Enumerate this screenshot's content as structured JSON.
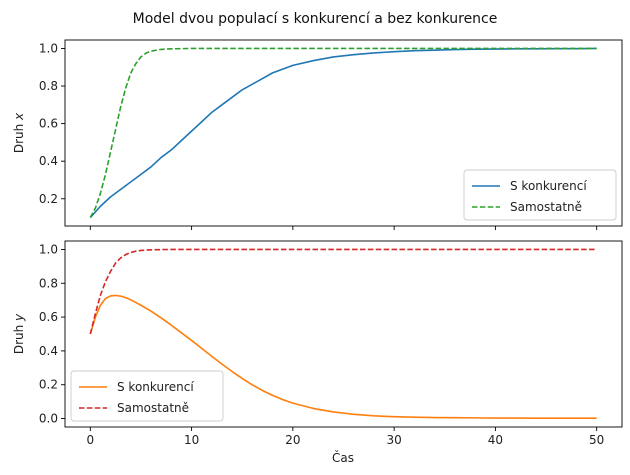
{
  "figure": {
    "title": "Model dvou populací s konkurencí a bez konkurence",
    "xlabel": "Čas"
  },
  "chart_data": [
    {
      "type": "line",
      "ylabel_text": "Druh ",
      "ylabel_var": "x",
      "xlim": [
        -2.5,
        52.5
      ],
      "ylim": [
        0.055,
        1.045
      ],
      "xticks": [
        0,
        10,
        20,
        30,
        40,
        50
      ],
      "yticks": [
        0.2,
        0.4,
        0.6,
        0.8,
        1.0
      ],
      "ytick_labels": [
        "0.2",
        "0.4",
        "0.6",
        "0.8",
        "1.0"
      ],
      "show_xtick_labels": false,
      "legend_position": "lower right",
      "series": [
        {
          "name": "S konkurencí",
          "color": "#1f77b4",
          "dash": false,
          "x": [
            0,
            1,
            2,
            3,
            4,
            5,
            6,
            7,
            8,
            9,
            10,
            11,
            12,
            13,
            14,
            15,
            16,
            17,
            18,
            19,
            20,
            22,
            24,
            26,
            28,
            30,
            32,
            34,
            36,
            38,
            40,
            42,
            44,
            46,
            48,
            50
          ],
          "y": [
            0.1,
            0.16,
            0.21,
            0.25,
            0.29,
            0.33,
            0.37,
            0.42,
            0.46,
            0.51,
            0.56,
            0.61,
            0.66,
            0.7,
            0.74,
            0.78,
            0.81,
            0.84,
            0.87,
            0.89,
            0.91,
            0.935,
            0.955,
            0.967,
            0.976,
            0.983,
            0.988,
            0.991,
            0.994,
            0.996,
            0.997,
            0.998,
            0.998,
            0.999,
            0.999,
            1.0
          ]
        },
        {
          "name": "Samostatně",
          "color": "#2ca02c",
          "dash": true,
          "x": [
            0,
            0.5,
            1,
            1.5,
            2,
            2.5,
            3,
            3.5,
            4,
            4.5,
            5,
            5.5,
            6,
            7,
            8,
            9,
            10,
            12,
            15,
            20,
            25,
            30,
            35,
            40,
            45,
            50
          ],
          "y": [
            0.1,
            0.15,
            0.23,
            0.33,
            0.45,
            0.57,
            0.69,
            0.79,
            0.87,
            0.92,
            0.955,
            0.975,
            0.986,
            0.995,
            0.998,
            0.999,
            1.0,
            1.0,
            1.0,
            1.0,
            1.0,
            1.0,
            1.0,
            1.0,
            1.0,
            1.0
          ]
        }
      ]
    },
    {
      "type": "line",
      "ylabel_text": "Druh ",
      "ylabel_var": "y",
      "xlim": [
        -2.5,
        52.5
      ],
      "ylim": [
        -0.05,
        1.05
      ],
      "xticks": [
        0,
        10,
        20,
        30,
        40,
        50
      ],
      "yticks": [
        0.0,
        0.2,
        0.4,
        0.6,
        0.8,
        1.0
      ],
      "ytick_labels": [
        "0.0",
        "0.2",
        "0.4",
        "0.6",
        "0.8",
        "1.0"
      ],
      "xtick_labels": [
        "0",
        "10",
        "20",
        "30",
        "40",
        "50"
      ],
      "show_xtick_labels": true,
      "legend_position": "lower left",
      "series": [
        {
          "name": "S konkurencí",
          "color": "#ff7f0e",
          "dash": false,
          "x": [
            0,
            0.5,
            1,
            1.5,
            2,
            2.5,
            3,
            3.5,
            4,
            5,
            6,
            7,
            8,
            9,
            10,
            11,
            12,
            13,
            14,
            15,
            16,
            17,
            18,
            19,
            20,
            22,
            24,
            26,
            28,
            30,
            32,
            34,
            36,
            38,
            40,
            42,
            44,
            46,
            48,
            50
          ],
          "y": [
            0.5,
            0.6,
            0.67,
            0.71,
            0.725,
            0.728,
            0.724,
            0.715,
            0.702,
            0.67,
            0.635,
            0.595,
            0.552,
            0.507,
            0.462,
            0.415,
            0.368,
            0.322,
            0.278,
            0.237,
            0.199,
            0.166,
            0.137,
            0.112,
            0.091,
            0.06,
            0.039,
            0.025,
            0.016,
            0.011,
            0.008,
            0.006,
            0.005,
            0.004,
            0.003,
            0.003,
            0.002,
            0.002,
            0.002,
            0.002
          ]
        },
        {
          "name": "Samostatně",
          "color": "#d62728",
          "dash": true,
          "x": [
            0,
            0.5,
            1,
            1.5,
            2,
            2.5,
            3,
            3.5,
            4,
            4.5,
            5,
            6,
            7,
            8,
            10,
            15,
            20,
            25,
            30,
            35,
            40,
            45,
            50
          ],
          "y": [
            0.5,
            0.62,
            0.73,
            0.81,
            0.87,
            0.92,
            0.95,
            0.97,
            0.982,
            0.99,
            0.994,
            0.998,
            0.999,
            1.0,
            1.0,
            1.0,
            1.0,
            1.0,
            1.0,
            1.0,
            1.0,
            1.0,
            1.0
          ]
        }
      ]
    }
  ]
}
